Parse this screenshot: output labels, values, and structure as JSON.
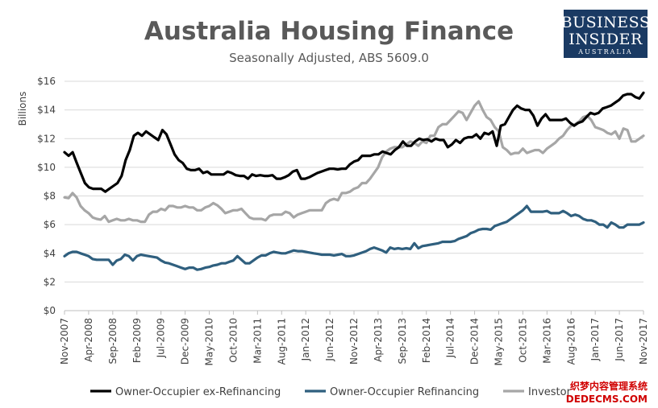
{
  "chart_data": {
    "type": "line",
    "title": "Australia Housing Finance",
    "subtitle": "Seasonally Adjusted, ABS 5609.0",
    "ylabel": "Billions",
    "xlabel": "",
    "ylim": [
      0,
      16
    ],
    "yticks": [
      0,
      2,
      4,
      6,
      8,
      10,
      12,
      14,
      16
    ],
    "ytick_labels": [
      "$0",
      "$2",
      "$4",
      "$6",
      "$8",
      "$10",
      "$12",
      "$14",
      "$16"
    ],
    "x_start": "Nov-2007",
    "x_end": "Nov-2017",
    "xtick_labels": [
      "Nov-2007",
      "Apr-2008",
      "Sep-2008",
      "Feb-2009",
      "Jul-2009",
      "Dec-2009",
      "May-2010",
      "Oct-2010",
      "Mar-2011",
      "Aug-2011",
      "Jan-2012",
      "Jun-2012",
      "Nov-2012",
      "Apr-2013",
      "Sep-2013",
      "Feb-2014",
      "Jul-2014",
      "Dec-2014",
      "May-2015",
      "Oct-2015",
      "Mar-2016",
      "Aug-2016",
      "Jan-2017",
      "Jun-2017",
      "Nov-2017"
    ],
    "grid": true,
    "legend_position": "bottom",
    "series": [
      {
        "name": "Owner-Occupier ex-Refinancing",
        "color": "#000000",
        "values": [
          11.05,
          10.8,
          11.05,
          10.3,
          9.6,
          8.9,
          8.6,
          8.5,
          8.5,
          8.5,
          8.3,
          8.5,
          8.7,
          8.9,
          9.4,
          10.5,
          11.2,
          12.2,
          12.4,
          12.2,
          12.5,
          12.3,
          12.1,
          11.9,
          12.6,
          12.3,
          11.6,
          10.9,
          10.5,
          10.3,
          9.9,
          9.8,
          9.8,
          9.9,
          9.6,
          9.7,
          9.5,
          9.5,
          9.5,
          9.5,
          9.7,
          9.6,
          9.45,
          9.4,
          9.4,
          9.2,
          9.5,
          9.4,
          9.45,
          9.4,
          9.4,
          9.45,
          9.2,
          9.2,
          9.3,
          9.45,
          9.7,
          9.8,
          9.2,
          9.2,
          9.3,
          9.45,
          9.6,
          9.7,
          9.8,
          9.9,
          9.9,
          9.85,
          9.9,
          9.9,
          10.2,
          10.4,
          10.5,
          10.8,
          10.8,
          10.8,
          10.9,
          10.9,
          11.1,
          11.0,
          10.9,
          11.2,
          11.4,
          11.8,
          11.5,
          11.5,
          11.8,
          12.0,
          11.9,
          11.95,
          11.8,
          12.0,
          11.9,
          11.9,
          11.4,
          11.6,
          11.9,
          11.7,
          12.0,
          12.1,
          12.1,
          12.3,
          12.0,
          12.4,
          12.3,
          12.5,
          11.5,
          12.9,
          13.0,
          13.5,
          14.0,
          14.3,
          14.1,
          14.0,
          14.0,
          13.6,
          12.9,
          13.4,
          13.7,
          13.3,
          13.3,
          13.3,
          13.3,
          13.4,
          13.1,
          12.9,
          13.1,
          13.2,
          13.5,
          13.8,
          13.7,
          13.8,
          14.1,
          14.2,
          14.3,
          14.5,
          14.7,
          15.0,
          15.1,
          15.1,
          14.9,
          14.8,
          15.2
        ]
      },
      {
        "name": "Owner-Occupier Refinancing",
        "color": "#2f5f7e",
        "values": [
          3.8,
          4.0,
          4.1,
          4.1,
          4.0,
          3.9,
          3.8,
          3.6,
          3.55,
          3.55,
          3.55,
          3.55,
          3.2,
          3.5,
          3.6,
          3.9,
          3.8,
          3.5,
          3.8,
          3.9,
          3.85,
          3.8,
          3.75,
          3.7,
          3.5,
          3.35,
          3.3,
          3.2,
          3.1,
          3.0,
          2.9,
          3.0,
          3.0,
          2.85,
          2.9,
          3.0,
          3.05,
          3.15,
          3.2,
          3.3,
          3.3,
          3.4,
          3.5,
          3.8,
          3.55,
          3.3,
          3.3,
          3.5,
          3.7,
          3.85,
          3.85,
          4.0,
          4.1,
          4.05,
          4.0,
          4.0,
          4.1,
          4.2,
          4.15,
          4.15,
          4.1,
          4.05,
          4.0,
          3.95,
          3.9,
          3.9,
          3.9,
          3.85,
          3.9,
          3.95,
          3.8,
          3.8,
          3.85,
          3.95,
          4.05,
          4.15,
          4.3,
          4.4,
          4.3,
          4.2,
          4.05,
          4.4,
          4.3,
          4.35,
          4.3,
          4.35,
          4.3,
          4.7,
          4.35,
          4.5,
          4.55,
          4.6,
          4.65,
          4.7,
          4.8,
          4.8,
          4.8,
          4.85,
          5.0,
          5.1,
          5.2,
          5.4,
          5.5,
          5.65,
          5.7,
          5.7,
          5.65,
          5.9,
          6.0,
          6.1,
          6.2,
          6.4,
          6.6,
          6.8,
          7.0,
          7.3,
          6.9,
          6.9,
          6.9,
          6.9,
          6.95,
          6.8,
          6.8,
          6.8,
          6.95,
          6.8,
          6.6,
          6.7,
          6.6,
          6.4,
          6.3,
          6.3,
          6.2,
          6.0,
          6.0,
          5.8,
          6.15,
          6.0,
          5.8,
          5.8,
          6.0,
          6.0,
          6.0,
          6.0,
          6.15
        ]
      },
      {
        "name": "Investor",
        "color": "#a6a6a6",
        "values": [
          7.9,
          7.85,
          8.2,
          7.9,
          7.3,
          7.0,
          6.8,
          6.5,
          6.4,
          6.35,
          6.6,
          6.2,
          6.3,
          6.4,
          6.3,
          6.3,
          6.4,
          6.3,
          6.3,
          6.2,
          6.2,
          6.7,
          6.9,
          6.9,
          7.1,
          7.0,
          7.3,
          7.3,
          7.2,
          7.2,
          7.3,
          7.2,
          7.2,
          7.0,
          7.0,
          7.2,
          7.3,
          7.5,
          7.35,
          7.1,
          6.8,
          6.9,
          7.0,
          7.0,
          7.1,
          6.8,
          6.5,
          6.4,
          6.4,
          6.4,
          6.3,
          6.6,
          6.7,
          6.7,
          6.7,
          6.9,
          6.8,
          6.5,
          6.7,
          6.8,
          6.9,
          7.0,
          7.0,
          7.0,
          7.0,
          7.5,
          7.7,
          7.8,
          7.7,
          8.2,
          8.2,
          8.3,
          8.5,
          8.6,
          8.9,
          8.9,
          9.2,
          9.6,
          10.0,
          10.7,
          11.1,
          11.3,
          11.4,
          11.4,
          11.4,
          11.6,
          11.8,
          11.7,
          11.5,
          11.8,
          11.7,
          12.2,
          12.2,
          12.8,
          13.0,
          13.0,
          13.3,
          13.6,
          13.9,
          13.8,
          13.3,
          13.8,
          14.3,
          14.6,
          14.0,
          13.5,
          13.3,
          12.8,
          12.5,
          11.4,
          11.2,
          10.9,
          11.0,
          11.0,
          11.3,
          11.0,
          11.1,
          11.2,
          11.2,
          11.0,
          11.3,
          11.5,
          11.7,
          12.0,
          12.2,
          12.6,
          12.9,
          13.0,
          13.2,
          13.5,
          13.6,
          13.3,
          12.8,
          12.7,
          12.6,
          12.4,
          12.3,
          12.5,
          12.0,
          12.7,
          12.6,
          11.8,
          11.8,
          12.0,
          12.2
        ]
      }
    ]
  },
  "branding": {
    "line1": "BUSINESS",
    "line2": "INSIDER",
    "line3": "AUSTRALIA",
    "bg_color": "#1a3a63"
  },
  "watermark": {
    "line1": "织梦内容管理系统",
    "line2": "DEDECMS.COM"
  }
}
